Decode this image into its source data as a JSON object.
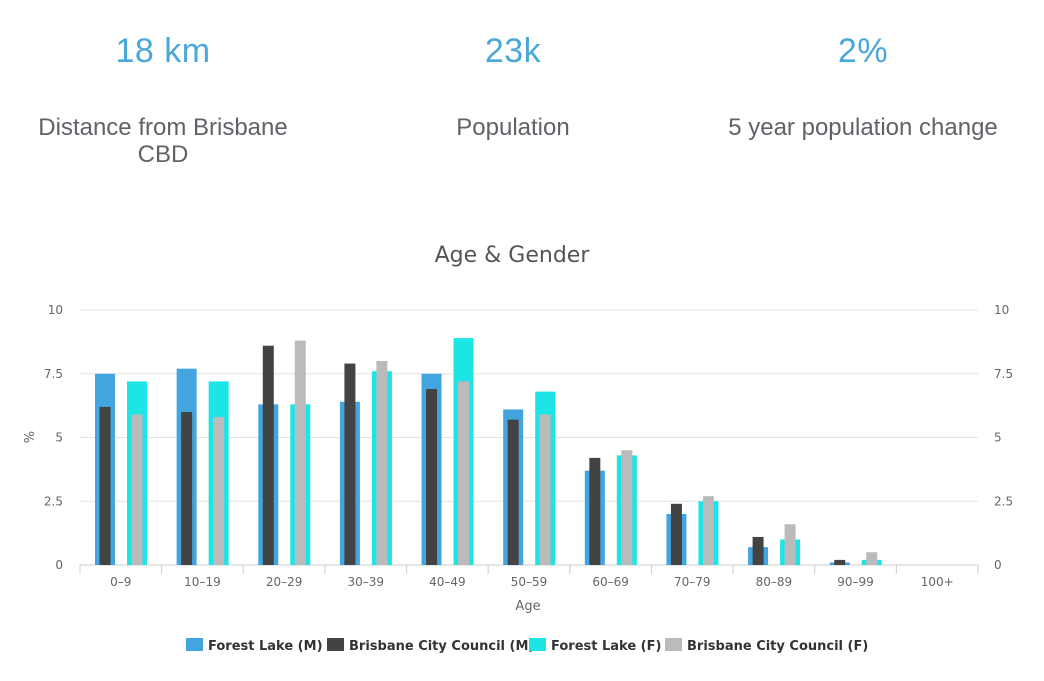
{
  "stats": [
    {
      "value": "18 km",
      "label": "Distance from Brisbane CBD"
    },
    {
      "value": "23k",
      "label": "Population"
    },
    {
      "value": "2%",
      "label": "5 year population change"
    }
  ],
  "chart_data": {
    "type": "bar",
    "title": "Age & Gender",
    "xlabel": "Age",
    "ylabel": "%",
    "ylim": [
      0,
      10
    ],
    "yticks": [
      "0",
      "2.5",
      "5",
      "7.5",
      "10"
    ],
    "ytick_values": [
      0,
      2.5,
      5,
      7.5,
      10
    ],
    "categories": [
      "0–9",
      "10–19",
      "20–29",
      "30–39",
      "40–49",
      "50–59",
      "60–69",
      "70–79",
      "80–89",
      "90–99",
      "100+"
    ],
    "series": [
      {
        "name": "Forest Lake (M)",
        "color": "#42a5e0",
        "values": [
          7.5,
          7.7,
          6.3,
          6.4,
          7.5,
          6.1,
          3.7,
          2.0,
          0.7,
          0.1,
          0.0
        ]
      },
      {
        "name": "Brisbane City Council (M)",
        "color": "#434343",
        "values": [
          6.2,
          6.0,
          8.6,
          7.9,
          6.9,
          5.7,
          4.2,
          2.4,
          1.1,
          0.2,
          0.0
        ]
      },
      {
        "name": "Forest Lake (F)",
        "color": "#1ee5e5",
        "values": [
          7.2,
          7.2,
          6.3,
          7.6,
          8.9,
          6.8,
          4.3,
          2.5,
          1.0,
          0.2,
          0.0
        ]
      },
      {
        "name": "Brisbane City Council (F)",
        "color": "#bbbbbb",
        "values": [
          5.9,
          5.8,
          8.8,
          8.0,
          7.2,
          5.9,
          4.5,
          2.7,
          1.6,
          0.5,
          0.0
        ]
      }
    ],
    "legend": "bottom",
    "grid": true
  }
}
